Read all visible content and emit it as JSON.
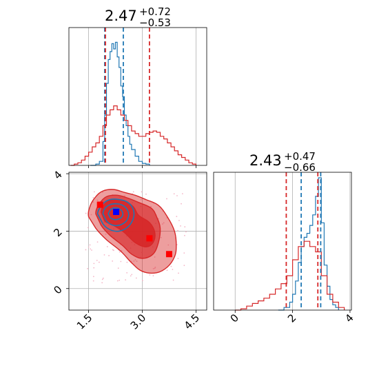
{
  "chart_data": [
    {
      "type": "line",
      "panel": "marginal-x",
      "title": {
        "value": "2.47",
        "upper": "+0.72",
        "lower": "−0.53"
      },
      "xlim": [
        0.95,
        4.8
      ],
      "grid": true,
      "reference_lines": [
        1.5,
        3.0,
        4.5
      ],
      "series": [
        {
          "color": "#1f77b4",
          "x": [
            1.55,
            1.7,
            1.8,
            1.9,
            1.95,
            2.0,
            2.05,
            2.1,
            2.15,
            2.2,
            2.25,
            2.3,
            2.35,
            2.4,
            2.45,
            2.5,
            2.55,
            2.6,
            2.65,
            2.7,
            2.8,
            2.9,
            3.0,
            3.1,
            3.2
          ],
          "y": [
            0,
            0.01,
            0.03,
            0.18,
            0.38,
            0.62,
            0.8,
            0.86,
            0.92,
            0.88,
            0.93,
            0.82,
            0.74,
            0.6,
            0.52,
            0.38,
            0.3,
            0.22,
            0.16,
            0.12,
            0.07,
            0.03,
            0.015,
            0.01,
            0
          ]
        },
        {
          "color": "#d62728",
          "x": [
            1.0,
            1.1,
            1.2,
            1.3,
            1.4,
            1.5,
            1.6,
            1.7,
            1.8,
            1.9,
            2.0,
            2.1,
            2.2,
            2.3,
            2.4,
            2.5,
            2.6,
            2.7,
            2.8,
            2.9,
            3.0,
            3.1,
            3.2,
            3.3,
            3.4,
            3.5,
            3.6,
            3.7,
            3.8,
            3.9,
            4.0,
            4.1,
            4.2,
            4.3,
            4.4,
            4.5
          ],
          "y": [
            0,
            0.01,
            0.02,
            0.04,
            0.07,
            0.1,
            0.14,
            0.17,
            0.22,
            0.3,
            0.38,
            0.42,
            0.45,
            0.42,
            0.38,
            0.34,
            0.3,
            0.26,
            0.24,
            0.22,
            0.22,
            0.24,
            0.25,
            0.26,
            0.25,
            0.22,
            0.2,
            0.17,
            0.14,
            0.11,
            0.08,
            0.06,
            0.04,
            0.02,
            0.01,
            0
          ]
        }
      ],
      "quantile_lines": [
        {
          "color": "#1f77b4",
          "x": [
            1.95,
            2.47
          ]
        },
        {
          "color": "#d62728",
          "x": [
            1.97,
            3.2
          ]
        }
      ]
    },
    {
      "type": "scatter",
      "panel": "joint",
      "xlim": [
        0.95,
        4.8
      ],
      "ylim": [
        -0.75,
        4.05
      ],
      "xticks": [
        "1.5",
        "3.0",
        "4.5"
      ],
      "xtick_values": [
        1.5,
        3.0,
        4.5
      ],
      "yticks": [
        "0",
        "2",
        "4"
      ],
      "ytick_values": [
        0,
        2,
        4
      ],
      "grid": true,
      "red_contours": [
        {
          "opacity": 0.45,
          "points": [
            [
              1.5,
              2.5
            ],
            [
              1.55,
              2.9
            ],
            [
              1.7,
              3.2
            ],
            [
              1.9,
              3.4
            ],
            [
              2.2,
              3.45
            ],
            [
              2.5,
              3.35
            ],
            [
              2.8,
              3.25
            ],
            [
              3.1,
              3.1
            ],
            [
              3.45,
              2.9
            ],
            [
              3.7,
              2.5
            ],
            [
              3.9,
              2.0
            ],
            [
              3.95,
              1.5
            ],
            [
              3.9,
              1.1
            ],
            [
              3.7,
              0.75
            ],
            [
              3.4,
              0.55
            ],
            [
              3.0,
              0.6
            ],
            [
              2.7,
              0.9
            ],
            [
              2.4,
              1.3
            ],
            [
              2.0,
              1.7
            ],
            [
              1.7,
              2.1
            ]
          ]
        },
        {
          "opacity": 0.65,
          "points": [
            [
              1.7,
              2.6
            ],
            [
              1.8,
              2.95
            ],
            [
              2.0,
              3.2
            ],
            [
              2.3,
              3.25
            ],
            [
              2.6,
              3.15
            ],
            [
              2.9,
              3.0
            ],
            [
              3.25,
              2.8
            ],
            [
              3.4,
              2.5
            ],
            [
              3.5,
              2.1
            ],
            [
              3.45,
              1.6
            ],
            [
              3.3,
              1.2
            ],
            [
              3.0,
              1.05
            ],
            [
              2.7,
              1.2
            ],
            [
              2.45,
              1.5
            ],
            [
              2.1,
              1.85
            ],
            [
              1.85,
              2.2
            ]
          ]
        },
        {
          "opacity": 0.9,
          "points": [
            [
              1.85,
              2.65
            ],
            [
              1.95,
              2.95
            ],
            [
              2.2,
              3.1
            ],
            [
              2.5,
              3.05
            ],
            [
              2.75,
              2.85
            ],
            [
              2.9,
              2.55
            ],
            [
              3.2,
              2.3
            ],
            [
              3.35,
              1.95
            ],
            [
              3.3,
              1.6
            ],
            [
              3.1,
              1.45
            ],
            [
              2.8,
              1.6
            ],
            [
              2.5,
              1.95
            ],
            [
              2.2,
              2.2
            ],
            [
              1.95,
              2.35
            ]
          ]
        }
      ],
      "blue_contours": [
        {
          "points": [
            [
              1.75,
              2.6
            ],
            [
              1.9,
              2.95
            ],
            [
              2.1,
              3.1
            ],
            [
              2.35,
              3.1
            ],
            [
              2.6,
              3.0
            ],
            [
              2.75,
              2.75
            ],
            [
              2.75,
              2.45
            ],
            [
              2.6,
              2.15
            ],
            [
              2.35,
              2.0
            ],
            [
              2.1,
              2.05
            ],
            [
              1.9,
              2.25
            ]
          ]
        },
        {
          "points": [
            [
              1.9,
              2.6
            ],
            [
              2.0,
              2.85
            ],
            [
              2.2,
              2.95
            ],
            [
              2.45,
              2.9
            ],
            [
              2.6,
              2.7
            ],
            [
              2.6,
              2.45
            ],
            [
              2.45,
              2.25
            ],
            [
              2.2,
              2.2
            ],
            [
              2.0,
              2.35
            ]
          ]
        },
        {
          "points": [
            [
              2.05,
              2.6
            ],
            [
              2.15,
              2.78
            ],
            [
              2.32,
              2.8
            ],
            [
              2.45,
              2.66
            ],
            [
              2.42,
              2.48
            ],
            [
              2.25,
              2.4
            ],
            [
              2.1,
              2.47
            ]
          ]
        }
      ],
      "markers": [
        {
          "color": "#ff0000",
          "x": 1.82,
          "y": 2.92
        },
        {
          "color": "#ff0000",
          "x": 3.2,
          "y": 1.75
        },
        {
          "color": "#ff0000",
          "x": 3.75,
          "y": 1.2
        },
        {
          "color": "#0000ff",
          "x": 2.27,
          "y": 2.67
        }
      ]
    },
    {
      "type": "line",
      "panel": "marginal-y",
      "title": {
        "value": "2.43",
        "upper": "+0.47",
        "lower": "−0.66"
      },
      "xlim": [
        -0.75,
        4.05
      ],
      "xticks": [
        "0",
        "2",
        "4"
      ],
      "xtick_values": [
        0,
        2,
        4
      ],
      "grid": true,
      "reference_lines": [
        0,
        2,
        4
      ],
      "series": [
        {
          "color": "#1f77b4",
          "x": [
            1.5,
            1.7,
            1.9,
            2.0,
            2.1,
            2.2,
            2.3,
            2.4,
            2.5,
            2.6,
            2.7,
            2.8,
            2.9,
            3.0,
            3.1,
            3.2,
            3.3,
            3.4,
            3.5,
            3.6
          ],
          "y": [
            0,
            0.02,
            0.06,
            0.12,
            0.22,
            0.36,
            0.48,
            0.55,
            0.58,
            0.64,
            0.72,
            0.86,
            1.0,
            0.66,
            0.34,
            0.18,
            0.08,
            0.04,
            0.02,
            0
          ]
        },
        {
          "color": "#d62728",
          "x": [
            0.0,
            0.2,
            0.4,
            0.6,
            0.8,
            1.0,
            1.2,
            1.4,
            1.6,
            1.8,
            2.0,
            2.2,
            2.4,
            2.6,
            2.8,
            3.0,
            3.2,
            3.4,
            3.6,
            3.8
          ],
          "y": [
            0,
            0.01,
            0.03,
            0.05,
            0.07,
            0.09,
            0.12,
            0.16,
            0.2,
            0.26,
            0.38,
            0.48,
            0.52,
            0.48,
            0.44,
            0.26,
            0.12,
            0.06,
            0.02,
            0
          ]
        }
      ],
      "quantile_lines": [
        {
          "color": "#1f77b4",
          "x": [
            2.3,
            2.98
          ]
        },
        {
          "color": "#d62728",
          "x": [
            1.78,
            2.88
          ]
        }
      ]
    }
  ]
}
